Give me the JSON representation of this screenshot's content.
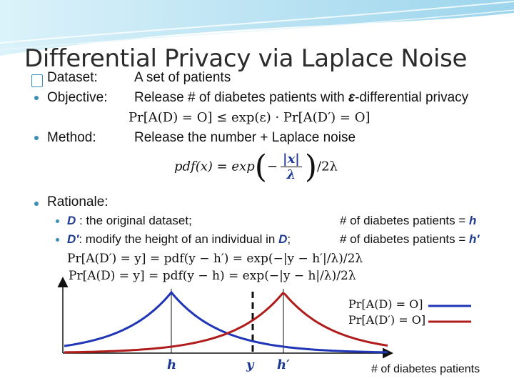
{
  "title": "Differential Privacy via Laplace Noise",
  "colors": {
    "blue_curve": "#1f35b5",
    "red_curve": "#b01c1c",
    "bullet": "#3a8fb8",
    "header_swoosh": "#8fd0e8"
  },
  "bullets": {
    "dataset": {
      "label": "Dataset:",
      "text": "A set of patients"
    },
    "objective": {
      "label": "Objective:",
      "text_pre": "Release # of diabetes patients with ",
      "epsilon": "ε",
      "text_post": "-differential privacy"
    },
    "objective_formula": "Pr[A(D) = O] ≤ exp(ε) · Pr[A(D′) = O]",
    "method": {
      "label": "Method:",
      "text": "Release the number + Laplace noise"
    },
    "method_formula_lhs": "pdf(x) = exp",
    "method_formula_num": "|x|",
    "method_formula_den": "λ",
    "method_formula_tail": "/2λ",
    "rationale": {
      "label": "Rationale:"
    }
  },
  "sub_bullets": [
    {
      "var": "D",
      "text": " : the original dataset;",
      "right": "# of diabetes patients = ",
      "right_var": "h"
    },
    {
      "var": "D′",
      "text": ": modify the height of an individual in ",
      "text_var": "D",
      "text_end": ";",
      "right": "# of diabetes patients = ",
      "right_var": "h′"
    }
  ],
  "formulas": [
    "Pr[A(D′) = y]  = pdf(y − h′) = exp(−|y − h′|/λ)/2λ",
    "Pr[A(D) = y]  = pdf(y − h)  = exp(−|y − h|/λ)/2λ"
  ],
  "legend": [
    {
      "label": "Pr[A(D) = O]",
      "color": "#1f35b5"
    },
    {
      "label": "Pr[A(D′) = O]",
      "color": "#b01c1c"
    }
  ],
  "axis": {
    "x_marks": [
      "h",
      "y",
      "h′"
    ],
    "x_caption": "# of diabetes patients"
  }
}
